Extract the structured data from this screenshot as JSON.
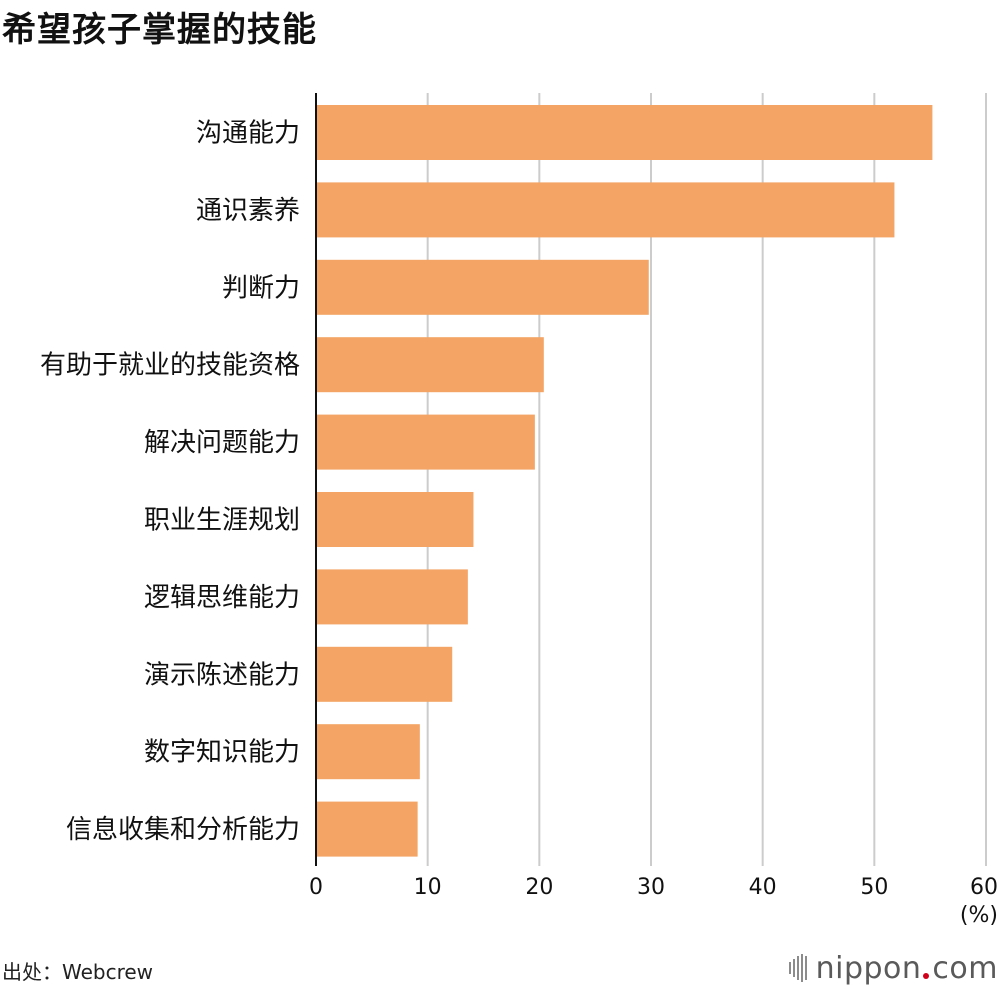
{
  "title": "希望孩子掌握的技能",
  "source": "出处：Webcrew",
  "logo": {
    "name": "nippon",
    "tld": "com"
  },
  "colors": {
    "bar": "#f4a464",
    "grid": "#cccccc",
    "axis": "#111111",
    "logo_dot": "#d0021b"
  },
  "chart_data": {
    "type": "bar",
    "orientation": "horizontal",
    "categories": [
      "沟通能力",
      "通识素养",
      "判断力",
      "有助于就业的技能资格",
      "解决问题能力",
      "职业生涯规划",
      "逻辑思维能力",
      "演示陈述能力",
      "数字知识能力",
      "信息收集和分析能力"
    ],
    "values": [
      55.2,
      51.8,
      29.8,
      20.4,
      19.6,
      14.1,
      13.6,
      12.2,
      9.3,
      9.1
    ],
    "xlim": [
      0,
      60
    ],
    "xticks": [
      "0",
      "10",
      "20",
      "30",
      "40",
      "50",
      "60"
    ],
    "unit_label": "(%)",
    "grid": true,
    "legend": "none"
  }
}
